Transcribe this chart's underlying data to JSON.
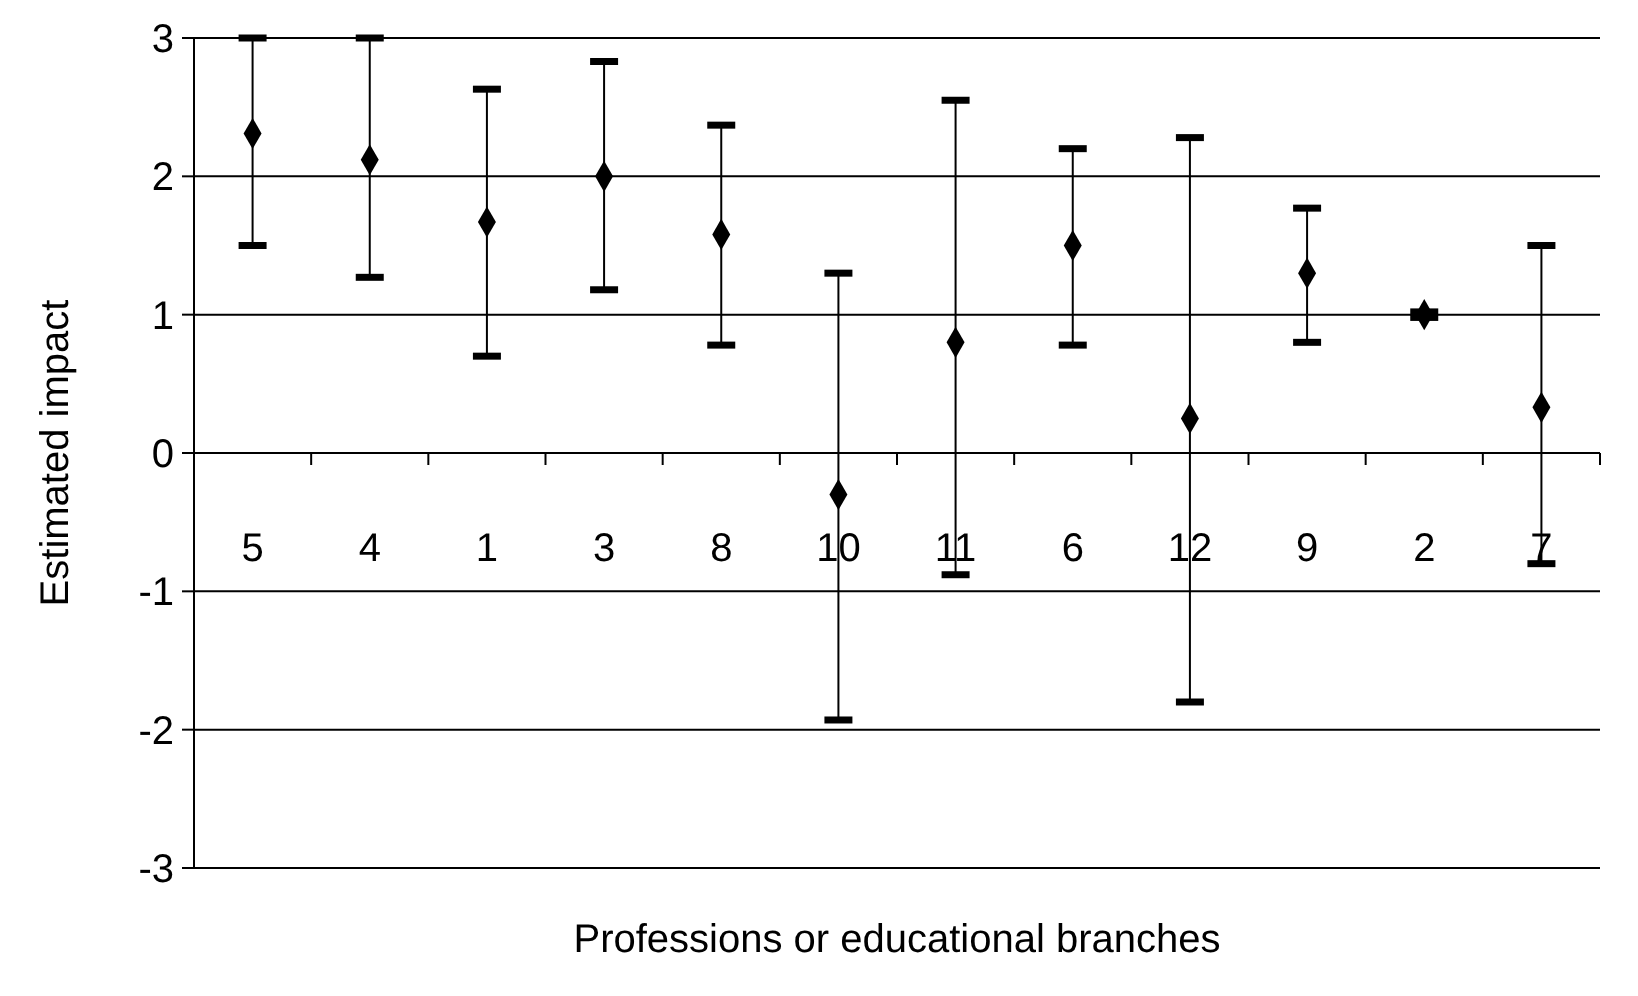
{
  "chart_data": {
    "type": "scatter",
    "xlabel": "Professions or educational branches",
    "ylabel": "Estimated impact",
    "categories": [
      "5",
      "4",
      "1",
      "3",
      "8",
      "10",
      "11",
      "6",
      "12",
      "9",
      "2",
      "7"
    ],
    "values": [
      2.31,
      2.12,
      1.67,
      2.0,
      1.58,
      -0.3,
      0.8,
      1.5,
      0.25,
      1.3,
      1.0,
      0.33
    ],
    "errors": [
      [
        1.5,
        3.0
      ],
      [
        1.27,
        3.0
      ],
      [
        0.7,
        2.63
      ],
      [
        1.18,
        2.83
      ],
      [
        0.78,
        2.37
      ],
      [
        -1.93,
        1.3
      ],
      [
        -0.88,
        2.55
      ],
      [
        0.78,
        2.2
      ],
      [
        -1.8,
        2.28
      ],
      [
        0.8,
        1.77
      ],
      [
        0.98,
        1.02
      ],
      [
        -0.8,
        1.5
      ]
    ],
    "color": "#000000",
    "marker": "diamond",
    "grid": "y",
    "ylim": [
      -3,
      3
    ],
    "yticks": [
      -3,
      -2,
      -1,
      0,
      1,
      2,
      3
    ]
  }
}
